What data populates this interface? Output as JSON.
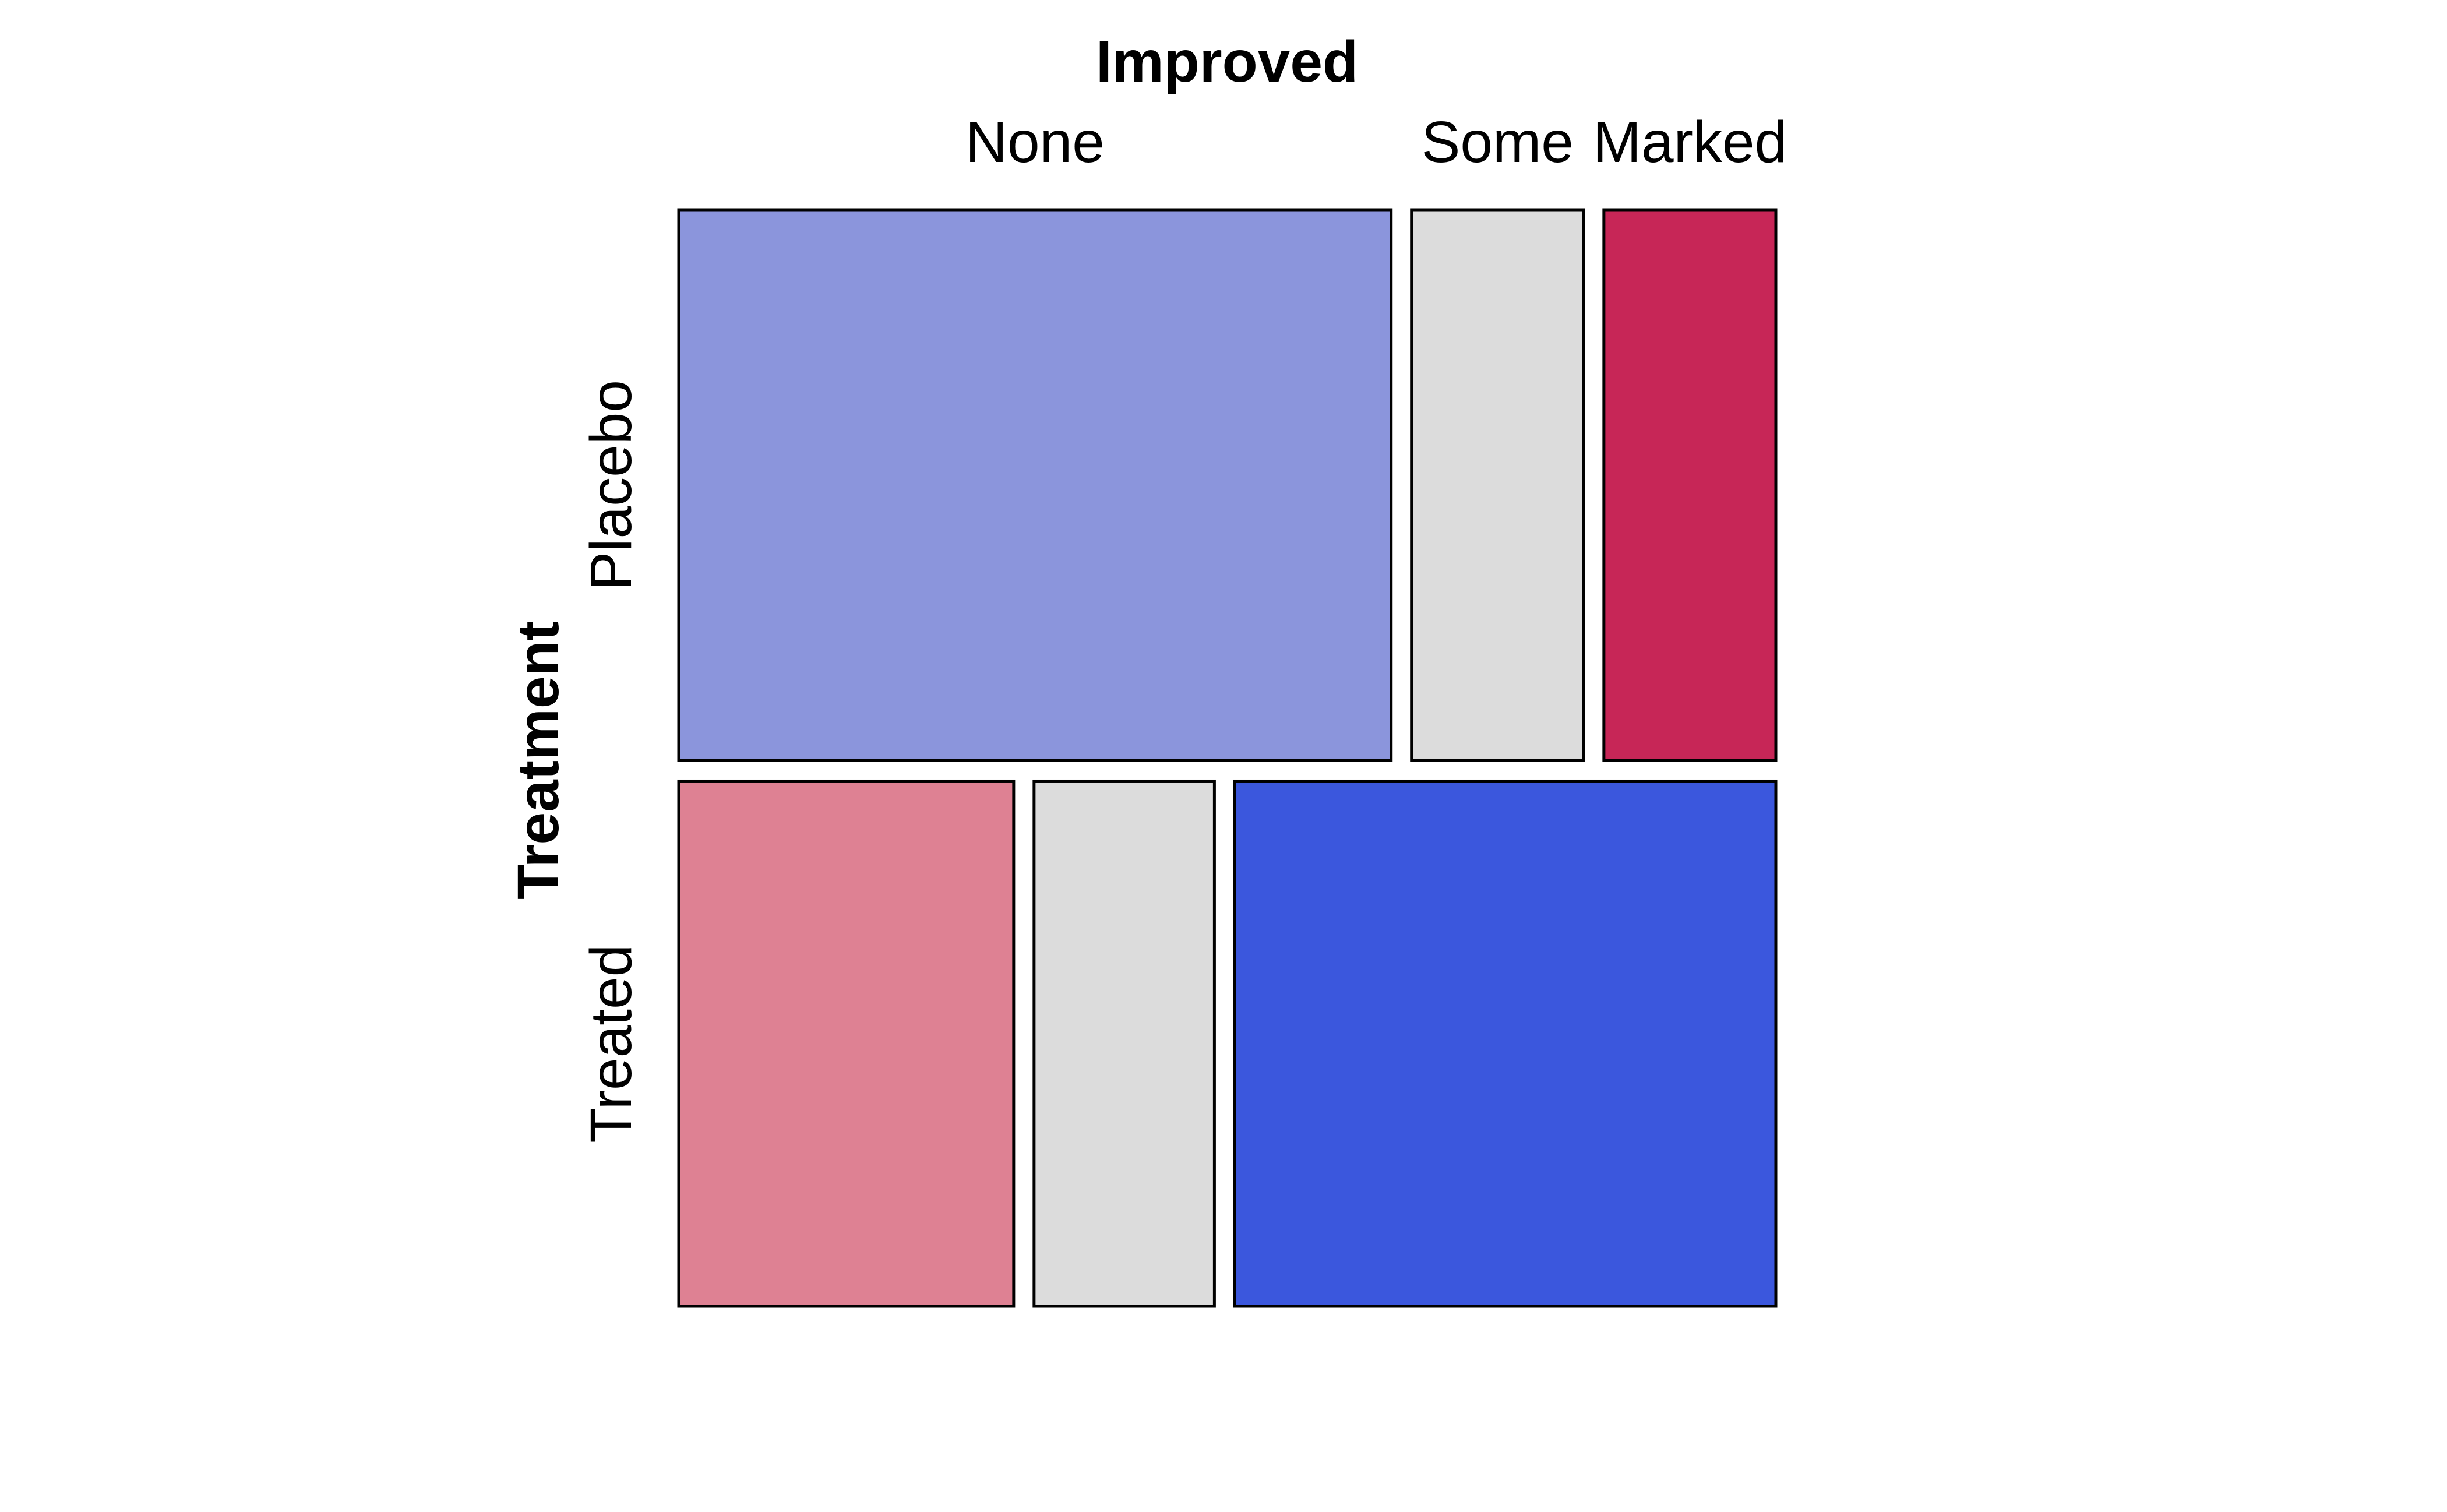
{
  "chart_data": {
    "type": "mosaic",
    "col_variable": "Improved",
    "row_variable": "Treatment",
    "col_levels": [
      "None",
      "Some",
      "Marked"
    ],
    "row_levels": [
      "Placebo",
      "Treated"
    ],
    "counts": [
      [
        29,
        7,
        7
      ],
      [
        13,
        7,
        21
      ]
    ],
    "colors": [
      [
        "#8b95dc",
        "#dcdcdc",
        "#c72657"
      ],
      [
        "#de8193",
        "#dcdcdc",
        "#3b57dd"
      ]
    ],
    "grid": false,
    "legend": "none"
  }
}
